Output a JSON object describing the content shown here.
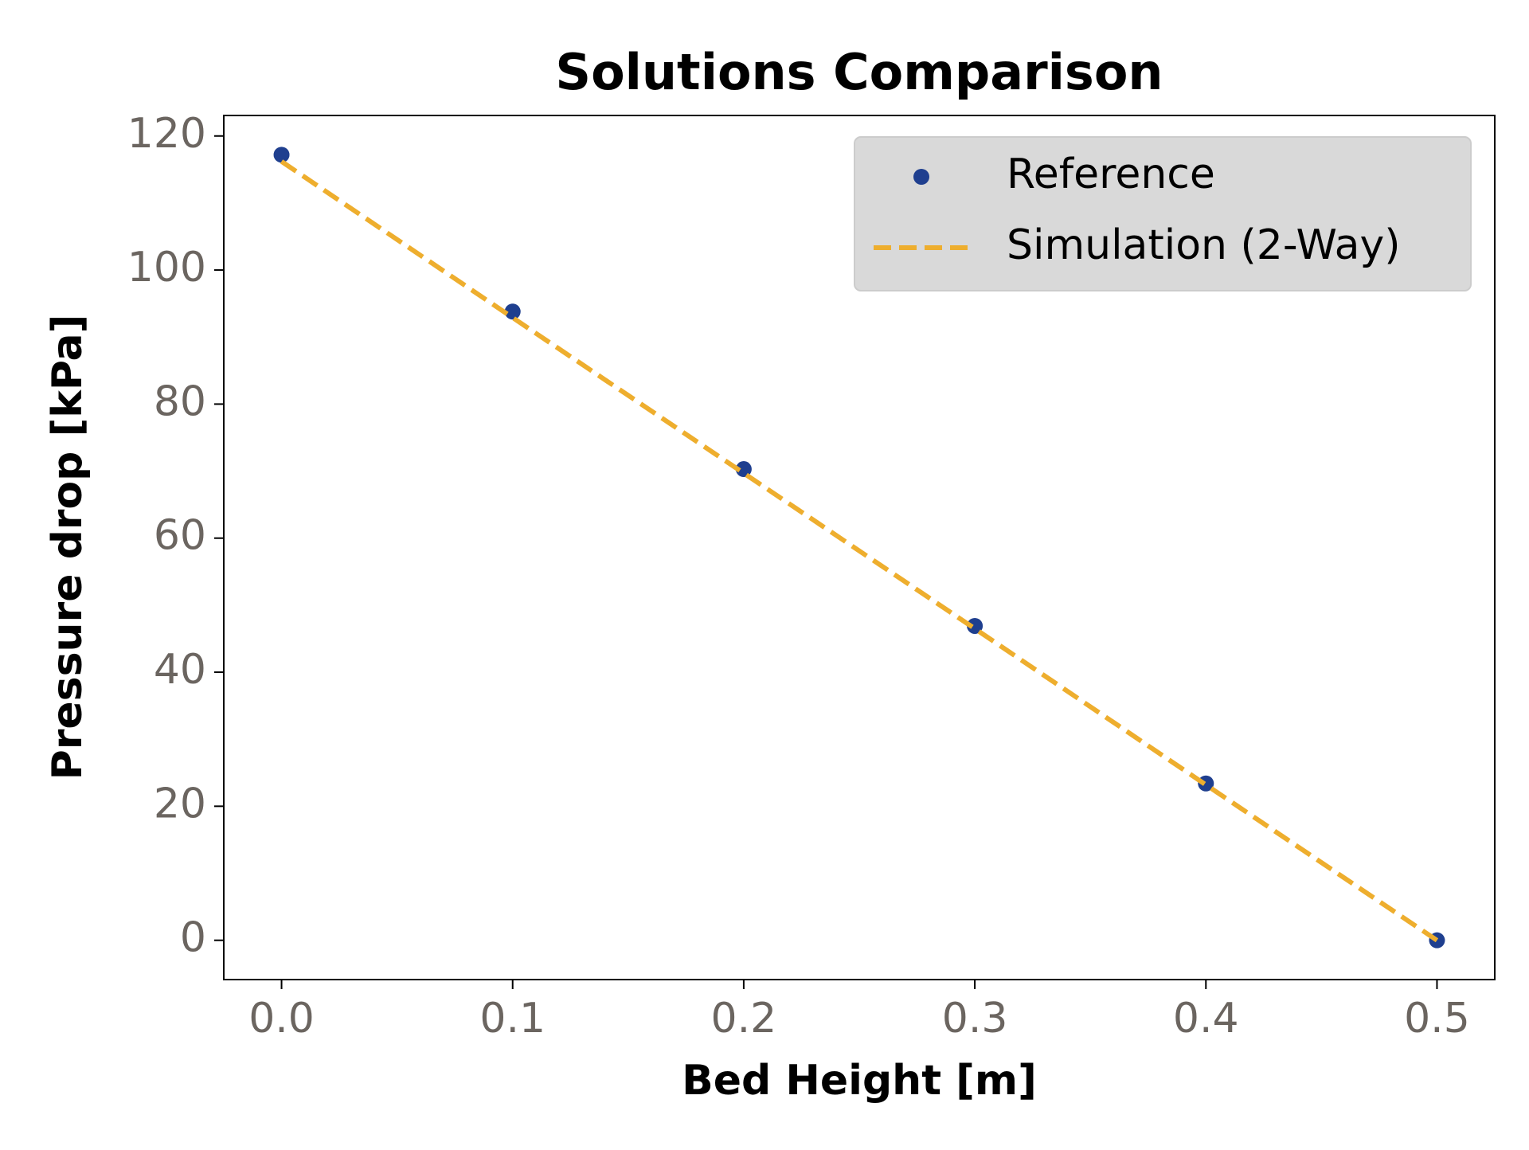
{
  "chart_data": {
    "type": "line",
    "title": "Solutions Comparison",
    "x_label": "Bed Height [m]",
    "y_label": "Pressure drop [kPa]",
    "xlim": [
      -0.025,
      0.525
    ],
    "ylim": [
      -5.86,
      123.06
    ],
    "xticks": [
      {
        "value": 0,
        "label": "0.0"
      },
      0.1,
      0.2,
      0.3,
      0.4,
      0.5
    ],
    "yticks": [
      0,
      20,
      40,
      60,
      80,
      100,
      120
    ],
    "legend_position": "upper right",
    "series": [
      {
        "name": "Reference",
        "color": "#1f3f8f",
        "style": "markers",
        "x": [
          0,
          0.1,
          0.2,
          0.3,
          0.4,
          0.5
        ],
        "values": [
          117.2,
          93.8,
          70.3,
          46.9,
          23.4,
          0
        ]
      },
      {
        "name": "Simulation (2-Way)",
        "color": "#eeae2e",
        "style": "dashed",
        "x": [
          0,
          0.1,
          0.2,
          0.3,
          0.4,
          0.5
        ],
        "values": [
          116.2,
          92.9,
          69.7,
          46.5,
          23.2,
          0
        ]
      }
    ]
  }
}
